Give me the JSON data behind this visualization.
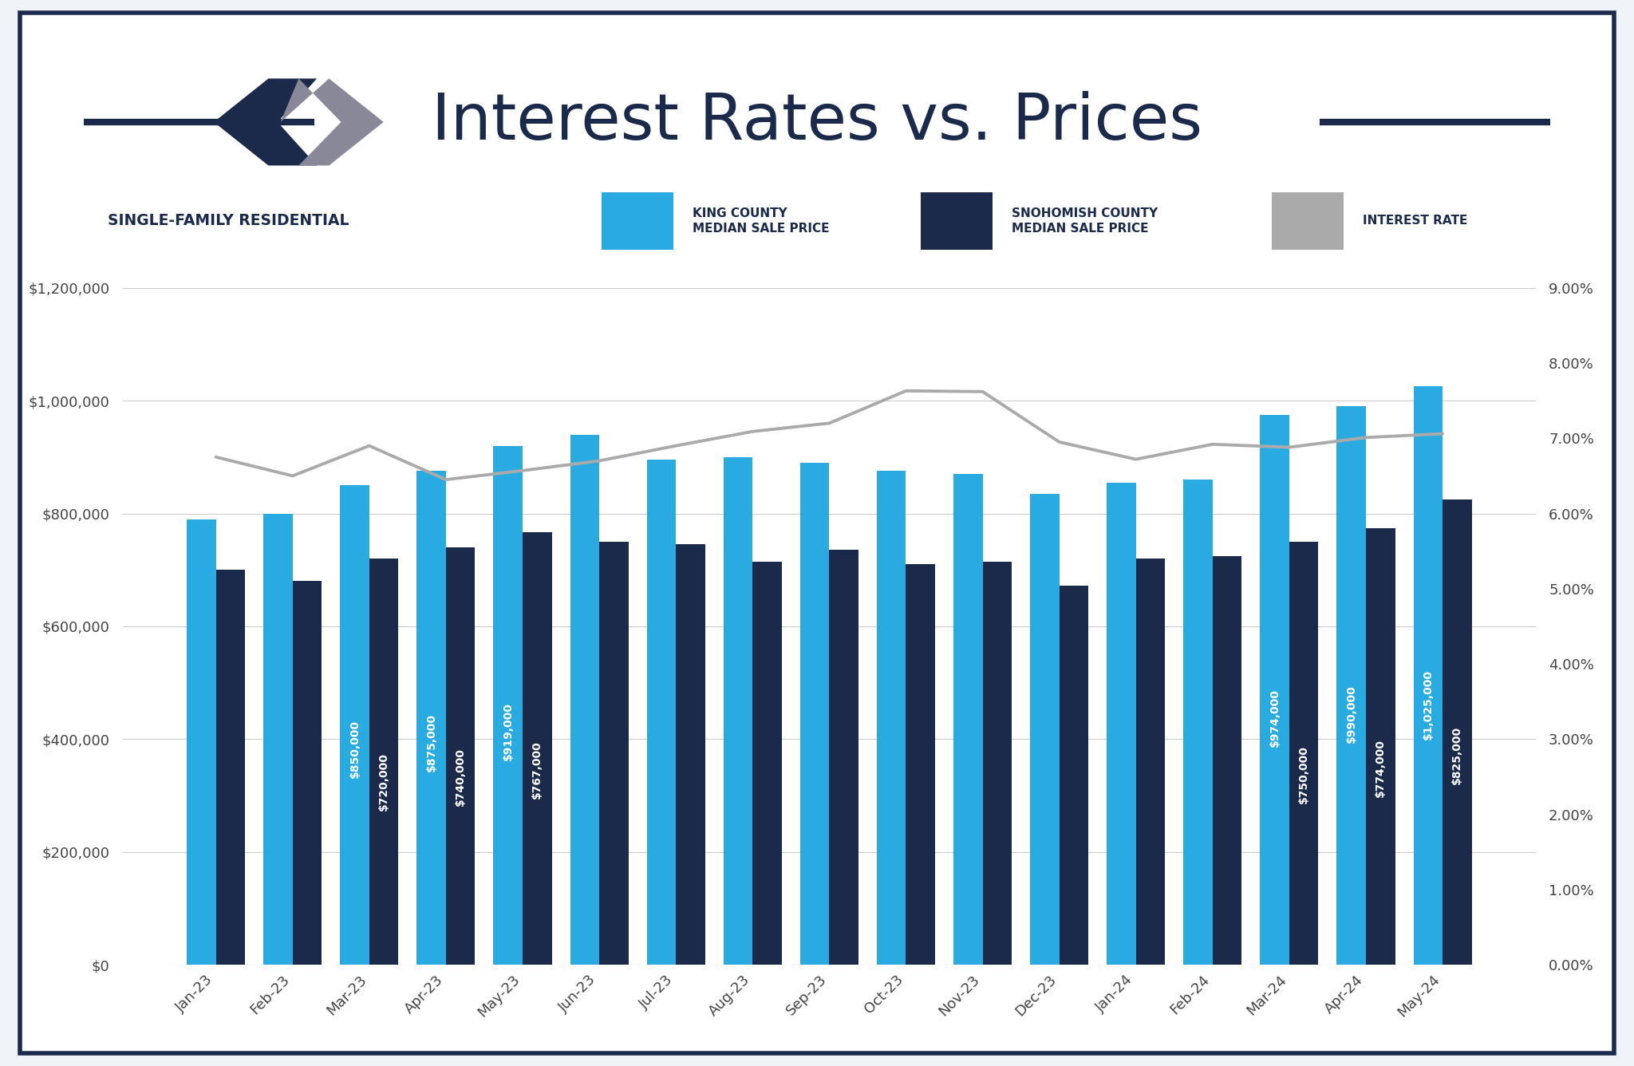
{
  "title": "Interest Rates vs. Prices",
  "subtitle": "SINGLE-FAMILY RESIDENTIAL",
  "months": [
    "Jan-23",
    "Feb-23",
    "Mar-23",
    "Apr-23",
    "May-23",
    "Jun-23",
    "Jul-23",
    "Aug-23",
    "Sep-23",
    "Oct-23",
    "Nov-23",
    "Dec-23",
    "Jan-24",
    "Feb-24",
    "Mar-24",
    "Apr-24",
    "May-24"
  ],
  "king_county": [
    790000,
    800000,
    850000,
    875000,
    919000,
    940000,
    895000,
    900000,
    890000,
    875000,
    870000,
    835000,
    855000,
    860000,
    974000,
    990000,
    1025000
  ],
  "snohomish_county": [
    700000,
    680000,
    720000,
    740000,
    767000,
    750000,
    745000,
    715000,
    735000,
    710000,
    715000,
    672000,
    720000,
    725000,
    750000,
    774000,
    825000
  ],
  "interest_rate": [
    6.75,
    6.5,
    6.9,
    6.45,
    6.57,
    6.7,
    6.9,
    7.09,
    7.2,
    7.63,
    7.62,
    6.95,
    6.72,
    6.92,
    6.88,
    7.01,
    7.06
  ],
  "labeled_indices": [
    2,
    3,
    4,
    14,
    15,
    16
  ],
  "king_color": "#29ABE2",
  "snohomish_color": "#1B2A4A",
  "interest_color": "#AAAAAA",
  "background_color": "#FFFFFF",
  "border_color": "#1B2A4A",
  "title_color": "#1B2A4A",
  "left_ylim": [
    0,
    1200000
  ],
  "right_ylim": [
    0.0,
    0.09
  ],
  "left_yticks": [
    0,
    200000,
    400000,
    600000,
    800000,
    1000000,
    1200000
  ],
  "right_yticks": [
    0.0,
    0.01,
    0.02,
    0.03,
    0.04,
    0.05,
    0.06,
    0.07,
    0.08,
    0.09
  ],
  "bar_width": 0.38
}
